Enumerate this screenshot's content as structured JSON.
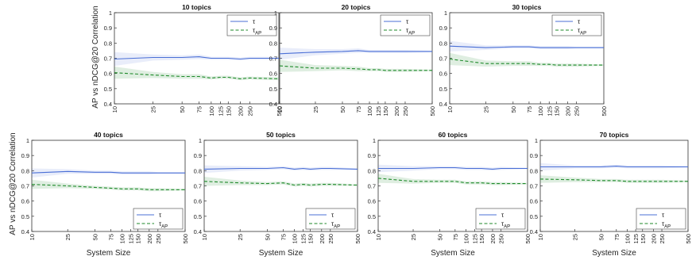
{
  "figure": {
    "ylabel": "AP vs nDCG@20 Correlation",
    "xlabel": "System Size"
  },
  "chart_data": [
    {
      "type": "line",
      "title": "10 topics",
      "x": [
        10,
        25,
        50,
        75,
        100,
        125,
        150,
        200,
        250,
        500
      ],
      "xticks": [
        "10",
        "25",
        "50",
        "75",
        "100",
        "125",
        "150",
        "200",
        "250",
        "500"
      ],
      "xscale": "log",
      "xlim": [
        10,
        500
      ],
      "ylim": [
        0.4,
        1
      ],
      "yticks": [
        "0.4",
        "0.5",
        "0.6",
        "0.7",
        "0.8",
        "0.9",
        "1"
      ],
      "xlabel": "",
      "ylabel": "AP vs nDCG@20 Correlation",
      "legend": "top-right",
      "series": [
        {
          "name": "τ",
          "color": "#4a6fd6",
          "style": "solid",
          "values": [
            0.695,
            0.705,
            0.705,
            0.71,
            0.7,
            0.7,
            0.7,
            0.695,
            0.7,
            0.7
          ],
          "band_low": [
            0.65,
            0.685,
            0.69,
            0.695,
            0.69,
            0.69,
            0.69,
            0.685,
            0.69,
            0.69
          ],
          "band_high": [
            0.74,
            0.725,
            0.72,
            0.725,
            0.71,
            0.71,
            0.71,
            0.705,
            0.71,
            0.71
          ]
        },
        {
          "name": "τAP",
          "color": "#1e8a2a",
          "style": "dashed",
          "values": [
            0.605,
            0.59,
            0.58,
            0.58,
            0.57,
            0.575,
            0.575,
            0.565,
            0.57,
            0.565
          ],
          "band_low": [
            0.565,
            0.57,
            0.565,
            0.565,
            0.56,
            0.565,
            0.565,
            0.555,
            0.56,
            0.555
          ],
          "band_high": [
            0.645,
            0.61,
            0.595,
            0.595,
            0.58,
            0.585,
            0.585,
            0.575,
            0.58,
            0.575
          ]
        }
      ]
    },
    {
      "type": "line",
      "title": "20 topics",
      "x": [
        10,
        25,
        50,
        75,
        100,
        125,
        150,
        200,
        250,
        500
      ],
      "xticks": [
        "10",
        "25",
        "50",
        "75",
        "100",
        "125",
        "150",
        "200",
        "250",
        "500"
      ],
      "xscale": "log",
      "xlim": [
        10,
        500
      ],
      "ylim": [
        0.4,
        1
      ],
      "yticks": [
        "0.4",
        "0.5",
        "0.6",
        "0.7",
        "0.8",
        "0.9",
        "1"
      ],
      "xlabel": "",
      "ylabel": "",
      "legend": "top-right",
      "series": [
        {
          "name": "τ",
          "color": "#4a6fd6",
          "style": "solid",
          "values": [
            0.73,
            0.74,
            0.745,
            0.75,
            0.745,
            0.745,
            0.745,
            0.745,
            0.745,
            0.745
          ],
          "band_low": [
            0.69,
            0.72,
            0.73,
            0.735,
            0.735,
            0.735,
            0.735,
            0.735,
            0.735,
            0.74
          ],
          "band_high": [
            0.77,
            0.76,
            0.76,
            0.765,
            0.755,
            0.755,
            0.755,
            0.755,
            0.755,
            0.75
          ]
        },
        {
          "name": "τAP",
          "color": "#1e8a2a",
          "style": "dashed",
          "values": [
            0.65,
            0.635,
            0.635,
            0.63,
            0.625,
            0.625,
            0.62,
            0.62,
            0.62,
            0.62
          ],
          "band_low": [
            0.61,
            0.615,
            0.62,
            0.615,
            0.615,
            0.615,
            0.61,
            0.61,
            0.61,
            0.615
          ],
          "band_high": [
            0.69,
            0.655,
            0.65,
            0.645,
            0.635,
            0.635,
            0.63,
            0.63,
            0.63,
            0.625
          ]
        }
      ]
    },
    {
      "type": "line",
      "title": "30 topics",
      "x": [
        10,
        25,
        50,
        75,
        100,
        125,
        150,
        200,
        250,
        500
      ],
      "xticks": [
        "10",
        "25",
        "50",
        "75",
        "100",
        "125",
        "150",
        "200",
        "250",
        "500"
      ],
      "xscale": "log",
      "xlim": [
        10,
        500
      ],
      "ylim": [
        0.4,
        1
      ],
      "yticks": [
        "0.4",
        "0.5",
        "0.6",
        "0.7",
        "0.8",
        "0.9",
        "1"
      ],
      "xlabel": "",
      "ylabel": "",
      "legend": "top-right",
      "series": [
        {
          "name": "τ",
          "color": "#4a6fd6",
          "style": "solid",
          "values": [
            0.78,
            0.77,
            0.775,
            0.775,
            0.77,
            0.77,
            0.77,
            0.77,
            0.77,
            0.77
          ],
          "band_low": [
            0.745,
            0.755,
            0.765,
            0.765,
            0.76,
            0.76,
            0.76,
            0.76,
            0.765,
            0.765
          ],
          "band_high": [
            0.815,
            0.785,
            0.785,
            0.785,
            0.78,
            0.78,
            0.78,
            0.78,
            0.775,
            0.775
          ]
        },
        {
          "name": "τAP",
          "color": "#1e8a2a",
          "style": "dashed",
          "values": [
            0.695,
            0.665,
            0.665,
            0.665,
            0.66,
            0.66,
            0.655,
            0.655,
            0.655,
            0.655
          ],
          "band_low": [
            0.655,
            0.645,
            0.65,
            0.65,
            0.65,
            0.65,
            0.645,
            0.645,
            0.645,
            0.65
          ],
          "band_high": [
            0.735,
            0.685,
            0.68,
            0.68,
            0.67,
            0.67,
            0.665,
            0.665,
            0.665,
            0.66
          ]
        }
      ]
    },
    {
      "type": "line",
      "title": "40 topics",
      "x": [
        10,
        25,
        50,
        75,
        100,
        125,
        150,
        200,
        250,
        500
      ],
      "xticks": [
        "10",
        "25",
        "50",
        "75",
        "100",
        "125",
        "150",
        "200",
        "250",
        "500"
      ],
      "xscale": "log",
      "xlim": [
        10,
        500
      ],
      "ylim": [
        0.4,
        1
      ],
      "yticks": [
        "0.4",
        "0.5",
        "0.6",
        "0.7",
        "0.8",
        "0.9",
        "1"
      ],
      "xlabel": "System Size",
      "ylabel": "AP vs nDCG@20 Correlation",
      "legend": "bottom-right",
      "series": [
        {
          "name": "τ",
          "color": "#4a6fd6",
          "style": "solid",
          "values": [
            0.785,
            0.795,
            0.79,
            0.79,
            0.785,
            0.785,
            0.785,
            0.785,
            0.785,
            0.785
          ],
          "band_low": [
            0.755,
            0.78,
            0.78,
            0.78,
            0.775,
            0.775,
            0.775,
            0.775,
            0.78,
            0.78
          ],
          "band_high": [
            0.815,
            0.81,
            0.8,
            0.8,
            0.795,
            0.795,
            0.795,
            0.795,
            0.79,
            0.79
          ]
        },
        {
          "name": "τAP",
          "color": "#1e8a2a",
          "style": "dashed",
          "values": [
            0.71,
            0.7,
            0.69,
            0.685,
            0.68,
            0.68,
            0.68,
            0.675,
            0.675,
            0.675
          ],
          "band_low": [
            0.68,
            0.685,
            0.68,
            0.675,
            0.67,
            0.67,
            0.67,
            0.665,
            0.665,
            0.67
          ],
          "band_high": [
            0.74,
            0.715,
            0.7,
            0.695,
            0.69,
            0.69,
            0.69,
            0.685,
            0.685,
            0.68
          ]
        }
      ]
    },
    {
      "type": "line",
      "title": "50 topics",
      "x": [
        10,
        25,
        50,
        75,
        100,
        125,
        150,
        200,
        250,
        500
      ],
      "xticks": [
        "10",
        "25",
        "50",
        "75",
        "100",
        "125",
        "150",
        "200",
        "250",
        "500"
      ],
      "xscale": "log",
      "xlim": [
        10,
        500
      ],
      "ylim": [
        0.4,
        1
      ],
      "yticks": [
        "0.4",
        "0.5",
        "0.6",
        "0.7",
        "0.8",
        "0.9",
        "1"
      ],
      "xlabel": "System Size",
      "ylabel": "",
      "legend": "bottom-right",
      "series": [
        {
          "name": "τ",
          "color": "#4a6fd6",
          "style": "solid",
          "values": [
            0.81,
            0.815,
            0.815,
            0.82,
            0.81,
            0.815,
            0.81,
            0.815,
            0.815,
            0.81
          ],
          "band_low": [
            0.785,
            0.8,
            0.805,
            0.81,
            0.8,
            0.805,
            0.8,
            0.805,
            0.805,
            0.805
          ],
          "band_high": [
            0.835,
            0.83,
            0.825,
            0.83,
            0.82,
            0.825,
            0.82,
            0.825,
            0.825,
            0.815
          ]
        },
        {
          "name": "τAP",
          "color": "#1e8a2a",
          "style": "dashed",
          "values": [
            0.73,
            0.72,
            0.715,
            0.72,
            0.705,
            0.71,
            0.705,
            0.71,
            0.71,
            0.705
          ],
          "band_low": [
            0.7,
            0.705,
            0.705,
            0.71,
            0.695,
            0.7,
            0.695,
            0.7,
            0.7,
            0.7
          ],
          "band_high": [
            0.76,
            0.735,
            0.725,
            0.73,
            0.715,
            0.72,
            0.715,
            0.72,
            0.72,
            0.71
          ]
        }
      ]
    },
    {
      "type": "line",
      "title": "60 topics",
      "x": [
        10,
        25,
        50,
        75,
        100,
        125,
        150,
        200,
        250,
        500
      ],
      "xticks": [
        "10",
        "25",
        "50",
        "75",
        "100",
        "125",
        "150",
        "200",
        "250",
        "500"
      ],
      "xscale": "log",
      "xlim": [
        10,
        500
      ],
      "ylim": [
        0.4,
        1
      ],
      "yticks": [
        "0.4",
        "0.5",
        "0.6",
        "0.7",
        "0.8",
        "0.9",
        "1"
      ],
      "xlabel": "System Size",
      "ylabel": "",
      "legend": "bottom-right",
      "series": [
        {
          "name": "τ",
          "color": "#4a6fd6",
          "style": "solid",
          "values": [
            0.815,
            0.815,
            0.82,
            0.82,
            0.815,
            0.815,
            0.815,
            0.81,
            0.815,
            0.815
          ],
          "band_low": [
            0.79,
            0.8,
            0.81,
            0.81,
            0.805,
            0.805,
            0.805,
            0.8,
            0.805,
            0.81
          ],
          "band_high": [
            0.84,
            0.83,
            0.83,
            0.83,
            0.825,
            0.825,
            0.825,
            0.82,
            0.825,
            0.82
          ]
        },
        {
          "name": "τAP",
          "color": "#1e8a2a",
          "style": "dashed",
          "values": [
            0.75,
            0.73,
            0.73,
            0.73,
            0.72,
            0.72,
            0.72,
            0.715,
            0.715,
            0.715
          ],
          "band_low": [
            0.72,
            0.715,
            0.72,
            0.72,
            0.71,
            0.71,
            0.71,
            0.705,
            0.705,
            0.71
          ],
          "band_high": [
            0.78,
            0.745,
            0.74,
            0.74,
            0.73,
            0.73,
            0.73,
            0.725,
            0.725,
            0.72
          ]
        }
      ]
    },
    {
      "type": "line",
      "title": "70 topics",
      "x": [
        10,
        25,
        50,
        75,
        100,
        125,
        150,
        200,
        250,
        500
      ],
      "xticks": [
        "10",
        "25",
        "50",
        "75",
        "100",
        "125",
        "150",
        "200",
        "250",
        "500"
      ],
      "xscale": "log",
      "xlim": [
        10,
        500
      ],
      "ylim": [
        0.4,
        1
      ],
      "yticks": [
        "0.4",
        "0.5",
        "0.6",
        "0.7",
        "0.8",
        "0.9",
        "1"
      ],
      "xlabel": "System Size",
      "ylabel": "",
      "legend": "bottom-right",
      "series": [
        {
          "name": "τ",
          "color": "#4a6fd6",
          "style": "solid",
          "values": [
            0.825,
            0.825,
            0.825,
            0.83,
            0.825,
            0.825,
            0.825,
            0.825,
            0.825,
            0.825
          ],
          "band_low": [
            0.8,
            0.815,
            0.815,
            0.82,
            0.815,
            0.815,
            0.815,
            0.815,
            0.815,
            0.82
          ],
          "band_high": [
            0.85,
            0.835,
            0.835,
            0.84,
            0.835,
            0.835,
            0.835,
            0.835,
            0.835,
            0.83
          ]
        },
        {
          "name": "τAP",
          "color": "#1e8a2a",
          "style": "dashed",
          "values": [
            0.745,
            0.74,
            0.735,
            0.735,
            0.73,
            0.73,
            0.73,
            0.73,
            0.73,
            0.73
          ],
          "band_low": [
            0.72,
            0.725,
            0.725,
            0.725,
            0.72,
            0.72,
            0.72,
            0.72,
            0.72,
            0.725
          ],
          "band_high": [
            0.77,
            0.755,
            0.745,
            0.745,
            0.74,
            0.74,
            0.74,
            0.74,
            0.74,
            0.735
          ]
        }
      ]
    }
  ]
}
